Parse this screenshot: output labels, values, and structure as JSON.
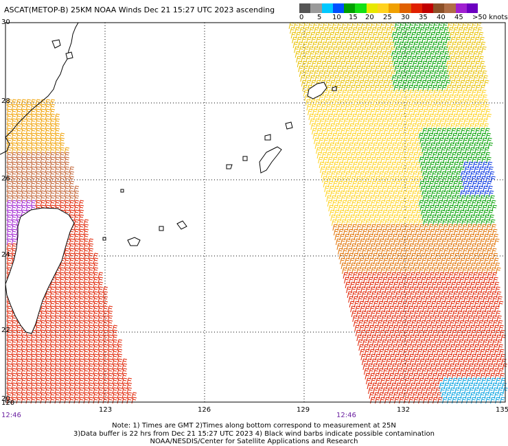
{
  "header": {
    "title": "ASCAT(METOP-B) 25KM NOAA Winds Dec 21 15:27 UTC 2023 ascending"
  },
  "colorbar": {
    "colors": [
      "#555555",
      "#9a9a9a",
      "#00c8ff",
      "#0050ff",
      "#00a000",
      "#14e014",
      "#e8e800",
      "#ffd21e",
      "#f0a000",
      "#e06000",
      "#e02000",
      "#c00000",
      "#8c5028",
      "#b06e46",
      "#a020d0",
      "#6c00c0"
    ],
    "labels": [
      "0",
      "5",
      "10",
      "15",
      "20",
      "25",
      "30",
      "35",
      "40",
      "45",
      ">50 knots"
    ]
  },
  "axes": {
    "x_ticks": [
      "120",
      "123",
      "126",
      "129",
      "132",
      "135"
    ],
    "y_ticks": [
      "30",
      "28",
      "26",
      "24",
      "22",
      "20"
    ],
    "pass_times": [
      "12:46",
      "12:46"
    ]
  },
  "footnote": {
    "line1": "Note: 1) Times are GMT 2)Times along bottom correspond to measurement at 25N",
    "line2": "3)Data buffer is 22 hrs from Dec 21 15:27 UTC 2023 4) Black wind barbs indicate possible contamination",
    "line3": "NOAA/NESDIS/Center for Satellite Applications and Research"
  },
  "map": {
    "lon_range": [
      120,
      135
    ],
    "lat_range": [
      20,
      30
    ],
    "grid": "dotted"
  }
}
